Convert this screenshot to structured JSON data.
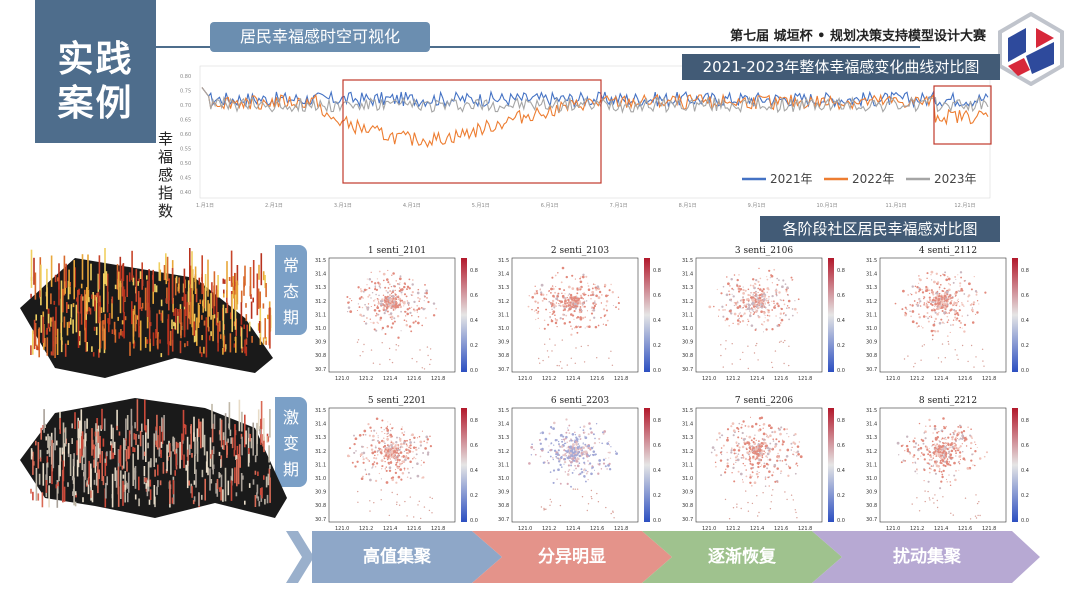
{
  "side_block": {
    "line1": "实践",
    "line2": "案例"
  },
  "header": {
    "subtitle": "居民幸福感时空可视化",
    "competition": "第七届 城垣杯 • 规划决策支持模型设计大赛"
  },
  "chart_title": "2021-2023年整体幸福感变化曲线对比图",
  "map_section_title": "各阶段社区居民幸福感对比图",
  "period_labels": [
    {
      "chars": [
        "常",
        "态",
        "期"
      ]
    },
    {
      "chars": [
        "激",
        "变",
        "期"
      ]
    }
  ],
  "chart_data": {
    "type": "line",
    "ylabel": "幸福感指数",
    "yticks": [
      "0.80",
      "0.75",
      "0.70",
      "0.65",
      "0.60",
      "0.55",
      "0.50",
      "0.45",
      "0.40"
    ],
    "xticks": [
      "1.月1日",
      "2.月1日",
      "3.月1日",
      "4.月1日",
      "5.月1日",
      "6.月1日",
      "7.月1日",
      "8.月1日",
      "9.月1日",
      "10.月1日",
      "11.月1日",
      "12.月1日"
    ],
    "ylim": [
      0.38,
      0.82
    ],
    "series": [
      {
        "name": "2021年",
        "color": "#4472c4",
        "base": 0.72,
        "dip": 0.0
      },
      {
        "name": "2022年",
        "color": "#ed7d31",
        "base": 0.71,
        "dip": 0.13
      },
      {
        "name": "2023年",
        "color": "#a5a5a5",
        "base": 0.7,
        "dip": 0.0
      }
    ],
    "legend_position": "bottom-right",
    "highlight_color": "#c0392b"
  },
  "maps": [
    {
      "title": "1 senti_2101",
      "intensity": 0.55
    },
    {
      "title": "2 senti_2103",
      "intensity": 0.6
    },
    {
      "title": "3 senti_2106",
      "intensity": 0.4
    },
    {
      "title": "4 senti_2112",
      "intensity": 0.55
    },
    {
      "title": "5 senti_2201",
      "intensity": 0.55
    },
    {
      "title": "6 senti_2203",
      "intensity": 0.25
    },
    {
      "title": "7 senti_2206",
      "intensity": 0.5
    },
    {
      "title": "8 senti_2212",
      "intensity": 0.55
    }
  ],
  "map_axes": {
    "yticks": [
      "31.5",
      "31.4",
      "31.3",
      "31.2",
      "31.1",
      "31.0",
      "30.9",
      "30.8",
      "30.7"
    ],
    "xticks": [
      "121.0",
      "121.2",
      "121.4",
      "121.6",
      "121.8"
    ],
    "cbar_ticks": [
      "0.8",
      "0.6",
      "0.4",
      "0.2",
      "0.0"
    ]
  },
  "stages": [
    {
      "label": "高值集聚",
      "color": "#8ea7c8"
    },
    {
      "label": "分异明显",
      "color": "#e4938a"
    },
    {
      "label": "逐渐恢复",
      "color": "#9fc28e"
    },
    {
      "label": "扰动集聚",
      "color": "#b7a9d3"
    }
  ]
}
